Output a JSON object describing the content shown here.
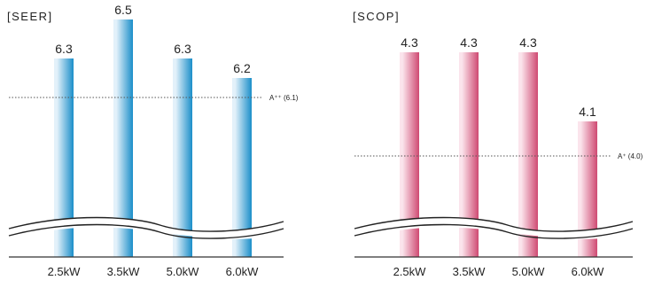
{
  "chart_data": [
    {
      "type": "bar",
      "title": "[SEER]",
      "categories": [
        "2.5kW",
        "3.5kW",
        "5.0kW",
        "6.0kW"
      ],
      "values": [
        6.3,
        6.5,
        6.3,
        6.2
      ],
      "value_labels": [
        "6.3",
        "6.5",
        "6.3",
        "6.2"
      ],
      "axis_break": true,
      "reference_line": {
        "value": 6.1,
        "label": "A⁺⁺ (6.1)",
        "style": "dotted"
      },
      "color": "#1a8ec9",
      "color_light": "#e3f1fa",
      "ylabel": "",
      "xlabel": ""
    },
    {
      "type": "bar",
      "title": "[SCOP]",
      "categories": [
        "2.5kW",
        "3.5kW",
        "5.0kW",
        "6.0kW"
      ],
      "values": [
        4.3,
        4.3,
        4.3,
        4.1
      ],
      "value_labels": [
        "4.3",
        "4.3",
        "4.3",
        "4.1"
      ],
      "axis_break": true,
      "reference_line": {
        "value": 4.0,
        "label": "A⁺ (4.0)",
        "style": "dotted"
      },
      "color": "#cf4a72",
      "color_light": "#fbe4ec",
      "ylabel": "",
      "xlabel": ""
    }
  ]
}
